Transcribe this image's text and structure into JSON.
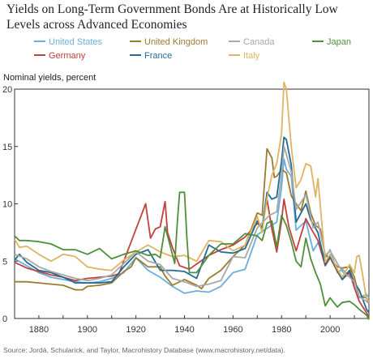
{
  "chart_data": {
    "type": "line",
    "title": "Yields on Long-Term Government Bonds Are at Historically Low Levels across Advanced Economies",
    "ylabel": "Nominal yields, percent",
    "source": "Source: Jordà, Schularick, and Taylor, Macrohistory Database (www.macrohistory.net/data).",
    "xlim": [
      1870,
      2016
    ],
    "ylim": [
      0,
      20
    ],
    "xticks": [
      1880,
      1900,
      1920,
      1940,
      1960,
      1980,
      2000
    ],
    "yticks": [
      0,
      5,
      10,
      15,
      20
    ],
    "legend_position": "top",
    "series": [
      {
        "name": "United States",
        "color": "#6aaedc",
        "points": [
          [
            1870,
            5.2
          ],
          [
            1875,
            4.6
          ],
          [
            1880,
            4.0
          ],
          [
            1885,
            3.6
          ],
          [
            1890,
            3.4
          ],
          [
            1895,
            3.2
          ],
          [
            1900,
            3.1
          ],
          [
            1905,
            3.2
          ],
          [
            1910,
            3.5
          ],
          [
            1915,
            4.0
          ],
          [
            1918,
            4.8
          ],
          [
            1920,
            5.3
          ],
          [
            1925,
            4.2
          ],
          [
            1930,
            3.6
          ],
          [
            1935,
            2.8
          ],
          [
            1940,
            2.2
          ],
          [
            1945,
            2.4
          ],
          [
            1950,
            2.3
          ],
          [
            1955,
            2.8
          ],
          [
            1960,
            4.0
          ],
          [
            1965,
            4.3
          ],
          [
            1970,
            7.3
          ],
          [
            1975,
            8.0
          ],
          [
            1978,
            8.4
          ],
          [
            1980,
            11.4
          ],
          [
            1981,
            13.9
          ],
          [
            1982,
            13.0
          ],
          [
            1984,
            12.4
          ],
          [
            1986,
            7.7
          ],
          [
            1990,
            8.5
          ],
          [
            1993,
            5.9
          ],
          [
            1995,
            6.6
          ],
          [
            1998,
            5.3
          ],
          [
            2000,
            6.0
          ],
          [
            2003,
            4.0
          ],
          [
            2005,
            4.3
          ],
          [
            2008,
            3.7
          ],
          [
            2010,
            3.2
          ],
          [
            2012,
            1.8
          ],
          [
            2015,
            2.1
          ],
          [
            2016,
            1.8
          ]
        ]
      },
      {
        "name": "Germany",
        "color": "#c4403d",
        "points": [
          [
            1870,
            4.9
          ],
          [
            1875,
            4.4
          ],
          [
            1880,
            4.1
          ],
          [
            1885,
            3.8
          ],
          [
            1890,
            3.6
          ],
          [
            1895,
            3.3
          ],
          [
            1900,
            3.5
          ],
          [
            1905,
            3.6
          ],
          [
            1910,
            3.7
          ],
          [
            1913,
            3.9
          ],
          [
            1924,
            10.0
          ],
          [
            1926,
            7.0
          ],
          [
            1928,
            7.8
          ],
          [
            1930,
            8.0
          ],
          [
            1932,
            10.2
          ],
          [
            1933,
            7.5
          ],
          [
            1935,
            6.2
          ],
          [
            1938,
            4.6
          ],
          [
            1942,
            4.3
          ],
          [
            1950,
            5.5
          ],
          [
            1955,
            6.0
          ],
          [
            1960,
            6.4
          ],
          [
            1965,
            7.1
          ],
          [
            1970,
            8.3
          ],
          [
            1972,
            7.9
          ],
          [
            1974,
            10.4
          ],
          [
            1976,
            7.8
          ],
          [
            1978,
            5.8
          ],
          [
            1980,
            8.5
          ],
          [
            1981,
            10.4
          ],
          [
            1983,
            8.0
          ],
          [
            1986,
            5.9
          ],
          [
            1990,
            8.7
          ],
          [
            1992,
            7.9
          ],
          [
            1995,
            6.8
          ],
          [
            1998,
            4.6
          ],
          [
            2000,
            5.3
          ],
          [
            2003,
            4.1
          ],
          [
            2005,
            3.4
          ],
          [
            2008,
            4.0
          ],
          [
            2010,
            2.7
          ],
          [
            2012,
            1.5
          ],
          [
            2015,
            0.5
          ],
          [
            2016,
            0.1
          ]
        ]
      },
      {
        "name": "United Kingdom",
        "color": "#9e7a2e",
        "points": [
          [
            1870,
            3.2
          ],
          [
            1875,
            3.2
          ],
          [
            1880,
            3.1
          ],
          [
            1885,
            3.0
          ],
          [
            1890,
            2.9
          ],
          [
            1895,
            2.5
          ],
          [
            1898,
            2.5
          ],
          [
            1900,
            2.8
          ],
          [
            1905,
            2.9
          ],
          [
            1910,
            3.1
          ],
          [
            1915,
            4.1
          ],
          [
            1918,
            4.5
          ],
          [
            1920,
            5.3
          ],
          [
            1925,
            4.5
          ],
          [
            1930,
            4.5
          ],
          [
            1932,
            3.7
          ],
          [
            1935,
            2.9
          ],
          [
            1940,
            3.4
          ],
          [
            1945,
            2.9
          ],
          [
            1947,
            2.6
          ],
          [
            1950,
            3.5
          ],
          [
            1955,
            4.2
          ],
          [
            1960,
            5.4
          ],
          [
            1965,
            6.4
          ],
          [
            1970,
            9.2
          ],
          [
            1972,
            9.0
          ],
          [
            1974,
            14.8
          ],
          [
            1975,
            14.4
          ],
          [
            1976,
            14.0
          ],
          [
            1977,
            12.3
          ],
          [
            1978,
            12.4
          ],
          [
            1980,
            13.0
          ],
          [
            1982,
            12.7
          ],
          [
            1984,
            10.7
          ],
          [
            1986,
            10.0
          ],
          [
            1988,
            9.4
          ],
          [
            1990,
            11.1
          ],
          [
            1992,
            9.2
          ],
          [
            1994,
            8.1
          ],
          [
            1996,
            7.8
          ],
          [
            1998,
            5.5
          ],
          [
            2000,
            5.3
          ],
          [
            2003,
            4.5
          ],
          [
            2005,
            4.4
          ],
          [
            2008,
            4.5
          ],
          [
            2010,
            3.6
          ],
          [
            2012,
            1.9
          ],
          [
            2015,
            1.8
          ],
          [
            2016,
            1.3
          ]
        ]
      },
      {
        "name": "France",
        "color": "#1f6b96",
        "points": [
          [
            1870,
            5.1
          ],
          [
            1872,
            5.6
          ],
          [
            1875,
            4.9
          ],
          [
            1880,
            4.2
          ],
          [
            1885,
            4.0
          ],
          [
            1890,
            3.6
          ],
          [
            1895,
            3.1
          ],
          [
            1900,
            3.1
          ],
          [
            1905,
            3.1
          ],
          [
            1910,
            3.2
          ],
          [
            1915,
            4.5
          ],
          [
            1920,
            5.6
          ],
          [
            1925,
            6.0
          ],
          [
            1930,
            4.2
          ],
          [
            1935,
            4.2
          ],
          [
            1940,
            4.1
          ],
          [
            1945,
            3.5
          ],
          [
            1950,
            6.4
          ],
          [
            1955,
            5.8
          ],
          [
            1960,
            5.7
          ],
          [
            1965,
            6.1
          ],
          [
            1970,
            8.5
          ],
          [
            1972,
            7.9
          ],
          [
            1974,
            11.0
          ],
          [
            1976,
            10.4
          ],
          [
            1978,
            10.6
          ],
          [
            1980,
            13.7
          ],
          [
            1981,
            15.8
          ],
          [
            1982,
            15.6
          ],
          [
            1984,
            13.4
          ],
          [
            1986,
            8.4
          ],
          [
            1990,
            10.0
          ],
          [
            1992,
            8.6
          ],
          [
            1995,
            7.5
          ],
          [
            1998,
            4.7
          ],
          [
            2000,
            5.4
          ],
          [
            2003,
            4.2
          ],
          [
            2005,
            3.4
          ],
          [
            2008,
            4.2
          ],
          [
            2010,
            3.1
          ],
          [
            2012,
            2.5
          ],
          [
            2015,
            0.8
          ],
          [
            2016,
            0.5
          ]
        ]
      },
      {
        "name": "Canada",
        "color": "#a8a8a8",
        "points": [
          [
            1870,
            5.6
          ],
          [
            1875,
            5.2
          ],
          [
            1880,
            4.5
          ],
          [
            1885,
            4.1
          ],
          [
            1890,
            3.8
          ],
          [
            1895,
            3.5
          ],
          [
            1900,
            3.3
          ],
          [
            1905,
            3.5
          ],
          [
            1910,
            3.8
          ],
          [
            1915,
            4.8
          ],
          [
            1920,
            5.8
          ],
          [
            1925,
            5.0
          ],
          [
            1930,
            4.7
          ],
          [
            1935,
            3.5
          ],
          [
            1940,
            3.2
          ],
          [
            1945,
            2.8
          ],
          [
            1950,
            3.0
          ],
          [
            1955,
            3.3
          ],
          [
            1960,
            5.4
          ],
          [
            1965,
            5.3
          ],
          [
            1970,
            7.9
          ],
          [
            1975,
            9.0
          ],
          [
            1978,
            9.3
          ],
          [
            1980,
            12.5
          ],
          [
            1981,
            15.0
          ],
          [
            1982,
            14.3
          ],
          [
            1984,
            12.8
          ],
          [
            1986,
            9.5
          ],
          [
            1990,
            10.8
          ],
          [
            1993,
            7.9
          ],
          [
            1995,
            8.4
          ],
          [
            1998,
            5.5
          ],
          [
            2000,
            5.9
          ],
          [
            2003,
            4.8
          ],
          [
            2005,
            4.1
          ],
          [
            2008,
            3.6
          ],
          [
            2010,
            3.2
          ],
          [
            2012,
            1.9
          ],
          [
            2015,
            1.5
          ],
          [
            2016,
            1.3
          ]
        ]
      },
      {
        "name": "Italy",
        "color": "#ddb462",
        "points": [
          [
            1870,
            6.9
          ],
          [
            1872,
            6.2
          ],
          [
            1875,
            6.3
          ],
          [
            1880,
            5.6
          ],
          [
            1885,
            5.0
          ],
          [
            1890,
            5.6
          ],
          [
            1895,
            5.4
          ],
          [
            1900,
            4.5
          ],
          [
            1905,
            4.3
          ],
          [
            1910,
            4.2
          ],
          [
            1915,
            5.1
          ],
          [
            1920,
            5.8
          ],
          [
            1925,
            6.4
          ],
          [
            1930,
            5.8
          ],
          [
            1935,
            5.4
          ],
          [
            1940,
            5.5
          ],
          [
            1945,
            5.0
          ],
          [
            1950,
            6.8
          ],
          [
            1955,
            6.7
          ],
          [
            1960,
            5.9
          ],
          [
            1965,
            6.4
          ],
          [
            1970,
            8.9
          ],
          [
            1972,
            7.5
          ],
          [
            1974,
            10.5
          ],
          [
            1976,
            12.5
          ],
          [
            1978,
            13.5
          ],
          [
            1980,
            16.1
          ],
          [
            1981,
            20.6
          ],
          [
            1982,
            20.0
          ],
          [
            1984,
            15.0
          ],
          [
            1986,
            11.4
          ],
          [
            1988,
            12.1
          ],
          [
            1990,
            13.5
          ],
          [
            1992,
            13.3
          ],
          [
            1994,
            10.6
          ],
          [
            1995,
            12.2
          ],
          [
            1998,
            4.9
          ],
          [
            2000,
            5.6
          ],
          [
            2003,
            4.3
          ],
          [
            2005,
            3.6
          ],
          [
            2008,
            4.7
          ],
          [
            2010,
            4.0
          ],
          [
            2011,
            5.4
          ],
          [
            2012,
            5.5
          ],
          [
            2013,
            4.3
          ],
          [
            2015,
            1.7
          ],
          [
            2016,
            1.5
          ]
        ]
      },
      {
        "name": "Japan",
        "color": "#4f8f3a",
        "points": [
          [
            1870,
            7.2
          ],
          [
            1872,
            6.8
          ],
          [
            1875,
            6.8
          ],
          [
            1880,
            6.7
          ],
          [
            1885,
            6.5
          ],
          [
            1890,
            6.0
          ],
          [
            1895,
            6.0
          ],
          [
            1900,
            5.6
          ],
          [
            1905,
            6.1
          ],
          [
            1910,
            5.2
          ],
          [
            1915,
            5.6
          ],
          [
            1920,
            5.9
          ],
          [
            1925,
            5.5
          ],
          [
            1928,
            5.6
          ],
          [
            1930,
            5.3
          ],
          [
            1932,
            8.0
          ],
          [
            1935,
            5.6
          ],
          [
            1936,
            4.8
          ],
          [
            1937,
            8.2
          ],
          [
            1938,
            11.0
          ],
          [
            1940,
            11.0
          ],
          [
            1941,
            7.0
          ],
          [
            1942,
            4.0
          ],
          [
            1945,
            4.0
          ],
          [
            1950,
            5.5
          ],
          [
            1955,
            6.5
          ],
          [
            1960,
            6.5
          ],
          [
            1965,
            7.4
          ],
          [
            1970,
            7.2
          ],
          [
            1972,
            6.8
          ],
          [
            1974,
            8.3
          ],
          [
            1976,
            8.5
          ],
          [
            1978,
            6.2
          ],
          [
            1980,
            9.0
          ],
          [
            1982,
            8.1
          ],
          [
            1984,
            6.7
          ],
          [
            1986,
            5.0
          ],
          [
            1988,
            4.5
          ],
          [
            1990,
            7.0
          ],
          [
            1992,
            5.2
          ],
          [
            1994,
            4.0
          ],
          [
            1996,
            3.0
          ],
          [
            1998,
            1.1
          ],
          [
            2000,
            1.8
          ],
          [
            2003,
            1.0
          ],
          [
            2005,
            1.4
          ],
          [
            2008,
            1.5
          ],
          [
            2010,
            1.2
          ],
          [
            2012,
            0.8
          ],
          [
            2015,
            0.3
          ],
          [
            2016,
            -0.1
          ]
        ]
      }
    ]
  }
}
